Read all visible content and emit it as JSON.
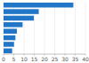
{
  "chart_data": {
    "type": "bar",
    "orientation": "horizontal",
    "categories": [
      null,
      null,
      null,
      null,
      null,
      null,
      null,
      null
    ],
    "values": [
      34.1,
      17.2,
      14.8,
      9.3,
      6.5,
      5.8,
      5.1,
      4.2
    ],
    "color": "#2176c7",
    "xlim": [
      0,
      40
    ],
    "xticks": [
      0,
      5,
      10,
      15,
      20,
      25,
      30,
      35,
      40
    ],
    "grid": true
  }
}
